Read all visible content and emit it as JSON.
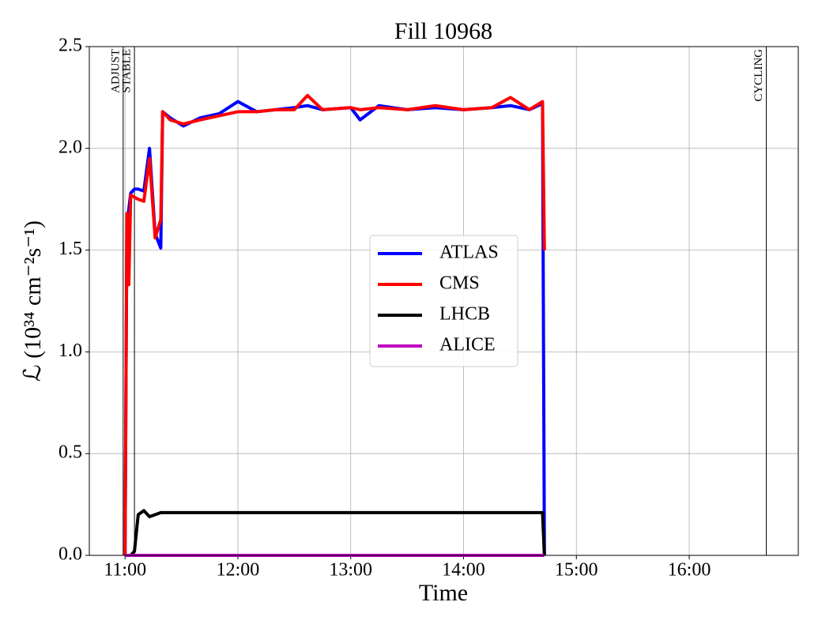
{
  "chart_data": {
    "type": "line",
    "title": "Fill 10968",
    "xlabel": "Time",
    "ylabel": "ℒ (10³⁴ cm⁻²s⁻¹)",
    "x": [
      "11:00",
      "11:01",
      "11:02",
      "11:03",
      "11:05",
      "11:07",
      "11:10",
      "11:13",
      "11:16",
      "11:19",
      "11:20",
      "11:24",
      "11:31",
      "11:40",
      "11:50",
      "12:00",
      "12:10",
      "12:20",
      "12:30",
      "12:37",
      "12:45",
      "13:00",
      "13:05",
      "13:15",
      "13:30",
      "13:45",
      "14:00",
      "14:15",
      "14:25",
      "14:35",
      "14:42",
      "14:43"
    ],
    "series": [
      {
        "name": "ATLAS",
        "color": "#0000ff",
        "values": [
          0,
          1.65,
          1.7,
          1.78,
          1.8,
          1.8,
          1.79,
          2.0,
          1.58,
          1.51,
          2.18,
          2.15,
          2.11,
          2.15,
          2.17,
          2.23,
          2.18,
          2.19,
          2.2,
          2.21,
          2.19,
          2.2,
          2.14,
          2.21,
          2.19,
          2.2,
          2.19,
          2.2,
          2.21,
          2.19,
          2.22,
          0
        ]
      },
      {
        "name": "CMS",
        "color": "#ff0000",
        "values": [
          0,
          1.68,
          1.33,
          1.77,
          1.76,
          1.75,
          1.74,
          1.95,
          1.56,
          1.65,
          2.18,
          2.14,
          2.12,
          2.14,
          2.16,
          2.18,
          2.18,
          2.19,
          2.19,
          2.26,
          2.19,
          2.2,
          2.19,
          2.2,
          2.19,
          2.21,
          2.19,
          2.2,
          2.25,
          2.19,
          2.23,
          1.5
        ]
      },
      {
        "name": "LHCB",
        "color": "#000000",
        "values": [
          0,
          0,
          0,
          0,
          0.02,
          0.2,
          0.22,
          0.19,
          0.2,
          0.21,
          0.21,
          0.21,
          0.21,
          0.21,
          0.21,
          0.21,
          0.21,
          0.21,
          0.21,
          0.21,
          0.21,
          0.21,
          0.21,
          0.21,
          0.21,
          0.21,
          0.21,
          0.21,
          0.21,
          0.21,
          0.21,
          0
        ]
      },
      {
        "name": "ALICE",
        "color": "#bf00bf",
        "values": [
          0,
          0,
          0,
          0,
          0,
          0,
          0,
          0,
          0,
          0,
          0,
          0,
          0,
          0,
          0,
          0,
          0,
          0,
          0,
          0,
          0,
          0,
          0,
          0,
          0,
          0,
          0,
          0,
          0,
          0,
          0,
          0
        ]
      }
    ],
    "annotations": [
      {
        "text": "ADJUST",
        "x": "10:59"
      },
      {
        "text": "STABLE",
        "x": "11:05"
      },
      {
        "text": "CYCLING",
        "x": "16:41"
      }
    ],
    "xlim": [
      "10:41",
      "16:58"
    ],
    "xticks": [
      "11:00",
      "12:00",
      "13:00",
      "14:00",
      "15:00",
      "16:00"
    ],
    "ylim": [
      0,
      2.5
    ],
    "yticks": [
      {
        "value": 0,
        "label": "0.0"
      },
      0.5,
      {
        "value": 1,
        "label": "1.0"
      },
      1.5,
      {
        "value": 2,
        "label": "2.0"
      },
      2.5
    ],
    "grid": true,
    "legend": "center"
  }
}
